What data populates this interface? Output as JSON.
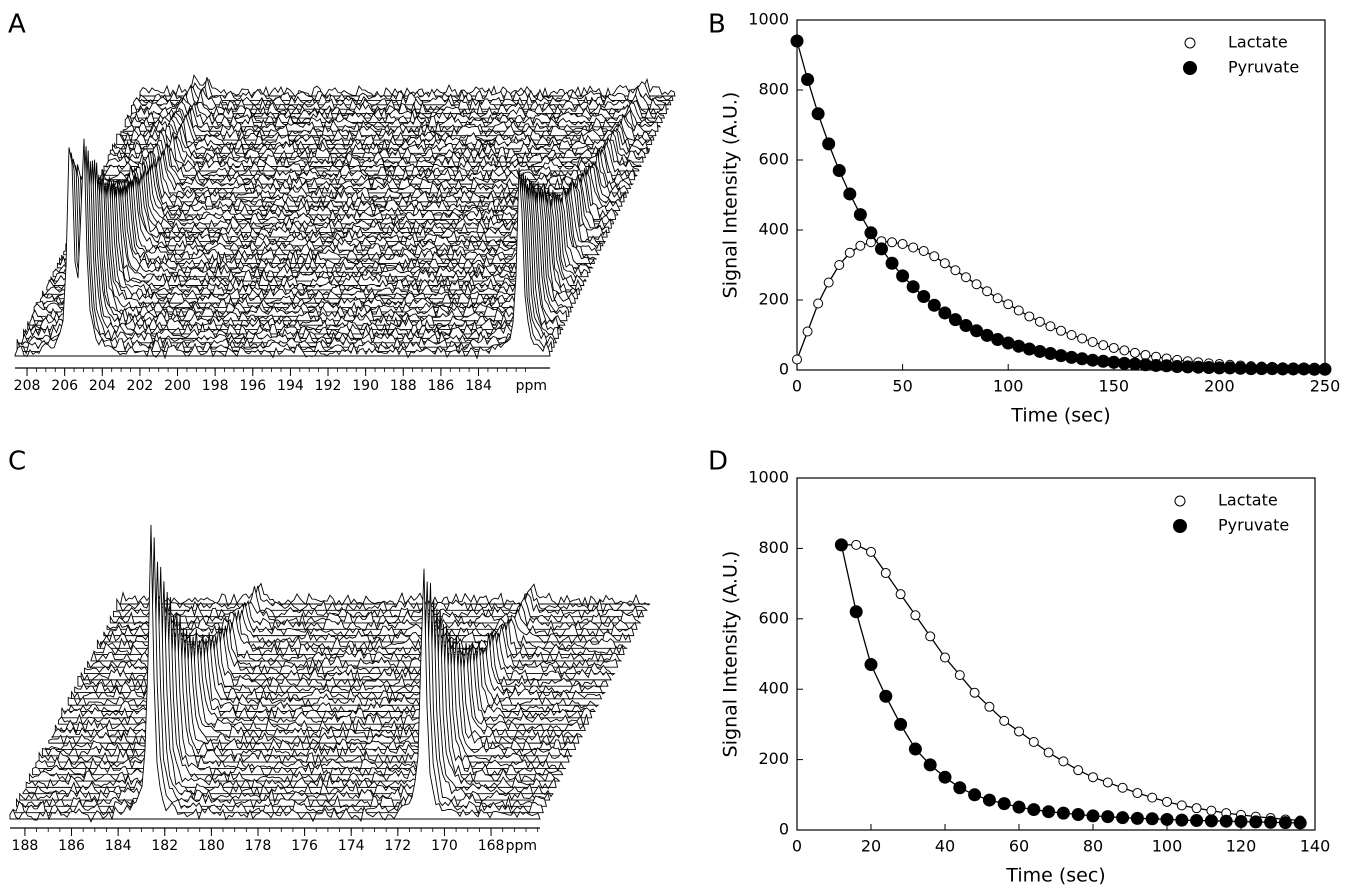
{
  "chart_data": [
    {
      "type": "waterfall",
      "label": "A",
      "xlim": [
        208.64,
        180.2
      ],
      "xticks": [
        208,
        206,
        204,
        202,
        200,
        198,
        196,
        194,
        192,
        190,
        188,
        186,
        184
      ],
      "xlabel": "ppm",
      "peaks": [
        205.7,
        205.0,
        181.8
      ],
      "color": "#000000"
    },
    {
      "type": "scatter",
      "label": "B",
      "xlabel": "Time (sec)",
      "ylabel": "Signal Intensity (A.U.)",
      "xlim": [
        0,
        250
      ],
      "xticks": [
        0,
        50,
        100,
        150,
        200,
        250
      ],
      "ylim": [
        0,
        1000
      ],
      "yticks": [
        0,
        200,
        400,
        600,
        800,
        1000
      ],
      "legend": "upper right",
      "x": [
        0,
        5,
        10,
        15,
        20,
        25,
        30,
        35,
        40,
        45,
        50,
        55,
        60,
        65,
        70,
        75,
        80,
        85,
        90,
        95,
        100,
        105,
        110,
        115,
        120,
        125,
        130,
        135,
        140,
        145,
        150,
        155,
        160,
        165,
        170,
        175,
        180,
        185,
        190,
        195,
        200,
        205,
        210,
        215,
        220,
        225,
        230,
        235,
        240,
        245,
        250
      ],
      "series": [
        {
          "name": "Lactate",
          "color": "#000000",
          "marker": "open",
          "line": true,
          "values": [
            30,
            110,
            190,
            250,
            300,
            335,
            355,
            365,
            368,
            365,
            360,
            350,
            340,
            325,
            305,
            285,
            265,
            245,
            225,
            205,
            188,
            170,
            153,
            138,
            125,
            112,
            100,
            90,
            80,
            71,
            63,
            56,
            49,
            43,
            38,
            33,
            29,
            25,
            22,
            19,
            17,
            15,
            13,
            11,
            10,
            9,
            8,
            7,
            6,
            6,
            5
          ]
        },
        {
          "name": "Pyruvate",
          "color": "#000000",
          "marker": "filled",
          "line": true,
          "values": [
            940,
            830,
            732,
            646,
            570,
            503,
            444,
            392,
            346,
            305,
            269,
            238,
            210,
            185,
            163,
            144,
            127,
            112,
            99,
            87,
            77,
            68,
            60,
            53,
            47,
            41,
            36,
            32,
            28,
            25,
            22,
            19,
            17,
            15,
            13,
            12,
            10,
            9,
            8,
            7,
            6,
            6,
            5,
            4,
            4,
            4,
            3,
            3,
            3,
            2,
            2
          ]
        }
      ]
    },
    {
      "type": "waterfall",
      "label": "C",
      "xlim": [
        188.64,
        165.9
      ],
      "xticks": [
        188,
        186,
        184,
        182,
        180,
        178,
        176,
        174,
        172,
        170,
        168
      ],
      "xlabel": "ppm",
      "peaks": [
        182.6,
        170.9
      ],
      "color": "#000000"
    },
    {
      "type": "scatter",
      "label": "D",
      "xlabel": "Time (sec)",
      "ylabel": "Signal Intensity (A.U.)",
      "xlim": [
        0,
        140
      ],
      "xticks": [
        0,
        20,
        40,
        60,
        80,
        100,
        120,
        140
      ],
      "ylim": [
        0,
        1000
      ],
      "yticks": [
        0,
        200,
        400,
        600,
        800,
        1000
      ],
      "legend": "upper right",
      "x": [
        12,
        16,
        20,
        24,
        28,
        32,
        36,
        40,
        44,
        48,
        52,
        56,
        60,
        64,
        68,
        72,
        76,
        80,
        84,
        88,
        92,
        96,
        100,
        104,
        108,
        112,
        116,
        120,
        124,
        128,
        132,
        136
      ],
      "series": [
        {
          "name": "Lactate",
          "color": "#000000",
          "marker": "open",
          "line": true,
          "values": [
            810,
            810,
            790,
            730,
            670,
            610,
            550,
            490,
            440,
            390,
            350,
            310,
            280,
            250,
            220,
            195,
            170,
            150,
            135,
            120,
            105,
            92,
            80,
            70,
            62,
            55,
            48,
            43,
            38,
            34,
            30,
            27
          ]
        },
        {
          "name": "Pyruvate",
          "color": "#000000",
          "marker": "filled",
          "line": true,
          "values": [
            810,
            620,
            470,
            380,
            300,
            230,
            185,
            150,
            120,
            100,
            85,
            75,
            65,
            58,
            52,
            48,
            44,
            40,
            38,
            35,
            33,
            32,
            30,
            28,
            27,
            26,
            25,
            24,
            23,
            22,
            21,
            20
          ]
        }
      ]
    }
  ]
}
